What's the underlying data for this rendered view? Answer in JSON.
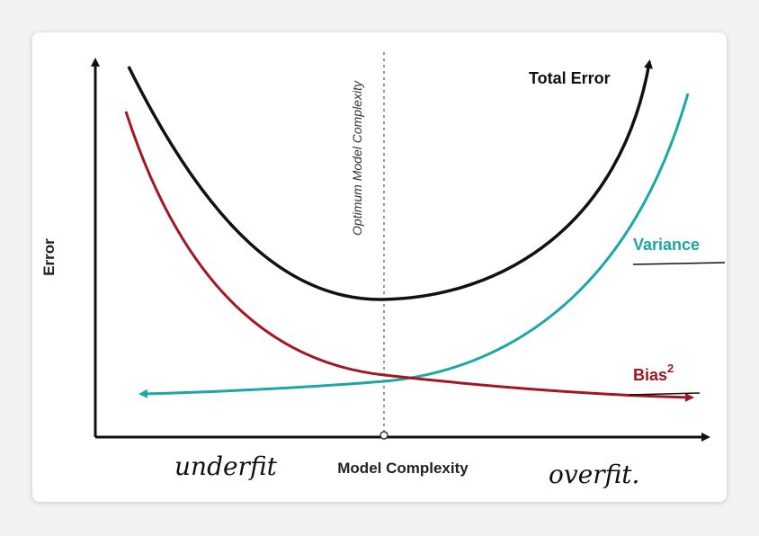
{
  "chart_data": {
    "type": "line",
    "title": "",
    "xlabel": "Model Complexity",
    "ylabel": "Error",
    "optimum_label": "Optimum Model Complexity",
    "series": [
      {
        "name": "Total Error",
        "color": "#111111"
      },
      {
        "name": "Variance",
        "color": "#1ba7a7"
      },
      {
        "name": "Bias",
        "superscript": "2",
        "color": "#a31622"
      }
    ],
    "annotations": {
      "left": "underfit",
      "right": "overfit."
    }
  }
}
